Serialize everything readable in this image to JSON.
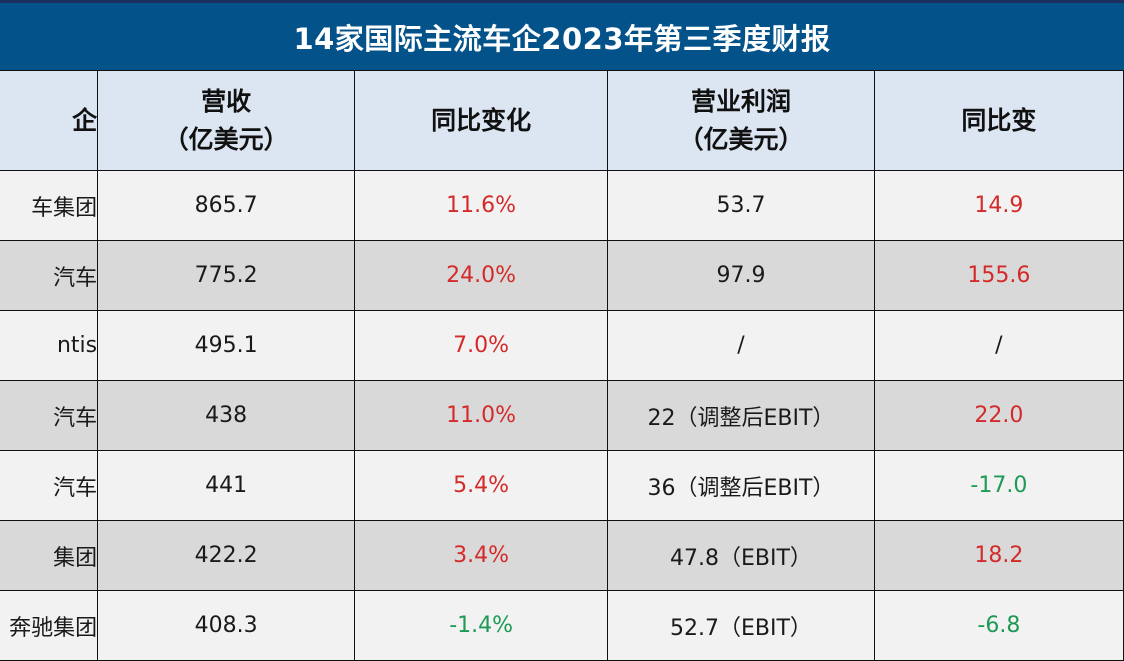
{
  "title": "14家国际主流车企2023年第三季度财报",
  "colors": {
    "title_bg": "#03528a",
    "header_bg": "#dce6f2",
    "row_light": "#f2f2f2",
    "row_dark": "#d9d9d9",
    "positive": "#d42a2a",
    "negative": "#1e9a55"
  },
  "columns": [
    {
      "line1": "企",
      "line2": ""
    },
    {
      "line1": "营收",
      "line2": "（亿美元）"
    },
    {
      "line1": "同比变化",
      "line2": ""
    },
    {
      "line1": "营业利润",
      "line2": "（亿美元）"
    },
    {
      "line1": "同比变",
      "line2": ""
    }
  ],
  "rows": [
    {
      "company": "车集团",
      "revenue": "865.7",
      "revenue_yoy": "11.6%",
      "revenue_yoy_dir": "up",
      "op_profit": "53.7",
      "op_profit_yoy": "14.9",
      "op_profit_yoy_dir": "up"
    },
    {
      "company": "汽车",
      "revenue": "775.2",
      "revenue_yoy": "24.0%",
      "revenue_yoy_dir": "up",
      "op_profit": "97.9",
      "op_profit_yoy": "155.6",
      "op_profit_yoy_dir": "up"
    },
    {
      "company": "ntis",
      "revenue": "495.1",
      "revenue_yoy": "7.0%",
      "revenue_yoy_dir": "up",
      "op_profit": "/",
      "op_profit_yoy": "/",
      "op_profit_yoy_dir": "none"
    },
    {
      "company": "汽车",
      "revenue": "438",
      "revenue_yoy": "11.0%",
      "revenue_yoy_dir": "up",
      "op_profit": "22（调整后EBIT）",
      "op_profit_yoy": "22.0",
      "op_profit_yoy_dir": "up"
    },
    {
      "company": "汽车",
      "revenue": "441",
      "revenue_yoy": "5.4%",
      "revenue_yoy_dir": "up",
      "op_profit": "36（调整后EBIT）",
      "op_profit_yoy": "-17.0",
      "op_profit_yoy_dir": "down"
    },
    {
      "company": "集团",
      "revenue": "422.2",
      "revenue_yoy": "3.4%",
      "revenue_yoy_dir": "up",
      "op_profit": "47.8（EBIT）",
      "op_profit_yoy": "18.2",
      "op_profit_yoy_dir": "up"
    },
    {
      "company": "奔驰集团",
      "revenue": "408.3",
      "revenue_yoy": "-1.4%",
      "revenue_yoy_dir": "down",
      "op_profit": "52.7（EBIT）",
      "op_profit_yoy": "-6.8",
      "op_profit_yoy_dir": "down"
    }
  ]
}
